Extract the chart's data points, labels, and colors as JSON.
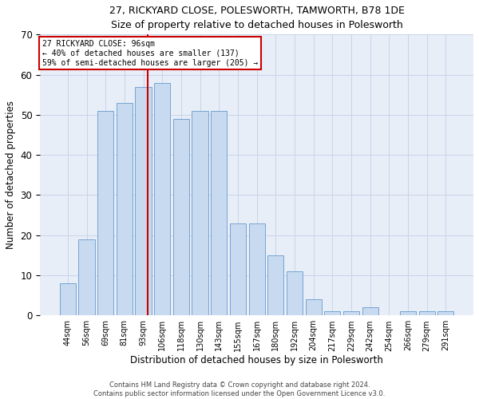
{
  "title1": "27, RICKYARD CLOSE, POLESWORTH, TAMWORTH, B78 1DE",
  "title2": "Size of property relative to detached houses in Polesworth",
  "xlabel": "Distribution of detached houses by size in Polesworth",
  "ylabel": "Number of detached properties",
  "categories": [
    "44sqm",
    "56sqm",
    "69sqm",
    "81sqm",
    "93sqm",
    "106sqm",
    "118sqm",
    "130sqm",
    "143sqm",
    "155sqm",
    "167sqm",
    "180sqm",
    "192sqm",
    "204sqm",
    "217sqm",
    "229sqm",
    "242sqm",
    "254sqm",
    "266sqm",
    "279sqm",
    "291sqm"
  ],
  "values": [
    8,
    19,
    51,
    53,
    57,
    58,
    49,
    51,
    51,
    23,
    23,
    15,
    11,
    4,
    1,
    1,
    2,
    0,
    1,
    1,
    1
  ],
  "bar_color": "#c8daf0",
  "bar_edge_color": "#6699cc",
  "annotation_line1": "27 RICKYARD CLOSE: 96sqm",
  "annotation_line2": "← 40% of detached houses are smaller (137)",
  "annotation_line3": "59% of semi-detached houses are larger (205) →",
  "annotation_box_color": "#ffffff",
  "annotation_box_edge_color": "#cc0000",
  "vline_color": "#cc0000",
  "ylim": [
    0,
    70
  ],
  "yticks": [
    0,
    10,
    20,
    30,
    40,
    50,
    60,
    70
  ],
  "grid_color": "#c8d4e8",
  "bg_color": "#e8eef8",
  "footer1": "Contains HM Land Registry data © Crown copyright and database right 2024.",
  "footer2": "Contains public sector information licensed under the Open Government Licence v3.0."
}
